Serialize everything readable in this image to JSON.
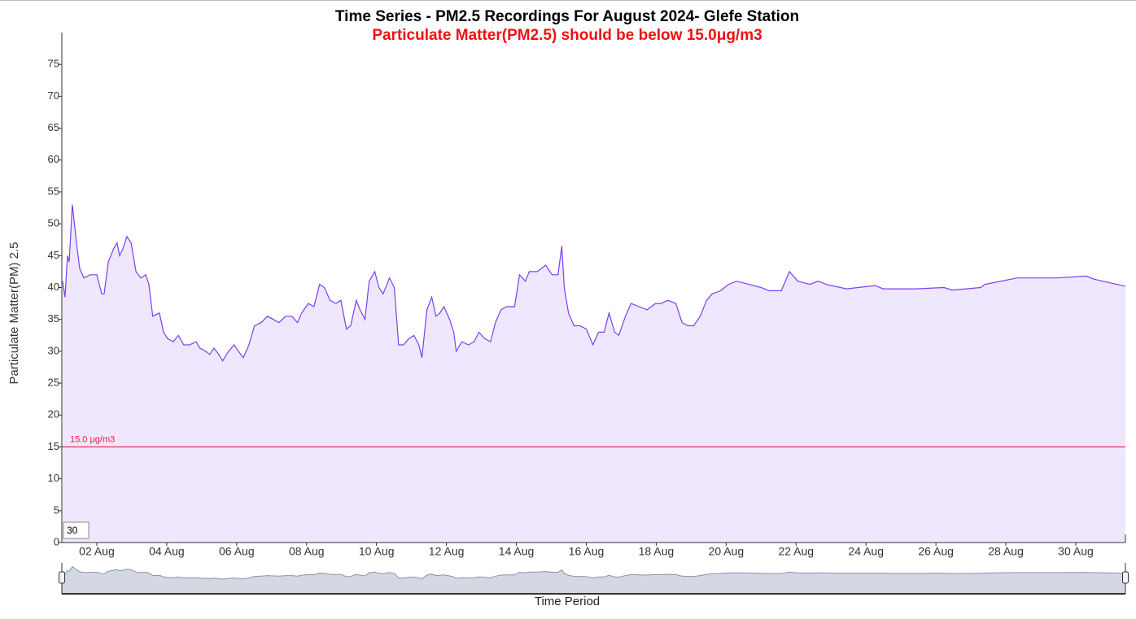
{
  "chart_data": {
    "type": "area",
    "title": "Time Series - PM2.5 Recordings For August 2024- Glefe Station",
    "subtitle": "Particulate Matter(PM2.5) should be below 15.0μg/m3",
    "y_label": "Particulate Matter(PM) 2.5",
    "x_label": "Time Period",
    "zoom_box": 30,
    "threshold": {
      "value": 15,
      "label": "15.0 μg/m3",
      "color": "#e8203a"
    },
    "ylim": [
      0,
      80
    ],
    "yticks": [
      0,
      5,
      10,
      15,
      20,
      25,
      30,
      35,
      40,
      45,
      50,
      55,
      60,
      65,
      70,
      75
    ],
    "xlim": [
      1,
      31.42
    ],
    "xticks": [
      {
        "value": 2,
        "label": "02 Aug"
      },
      {
        "value": 4,
        "label": "04 Aug"
      },
      {
        "value": 6,
        "label": "06 Aug"
      },
      {
        "value": 8,
        "label": "08 Aug"
      },
      {
        "value": 10,
        "label": "10 Aug"
      },
      {
        "value": 12,
        "label": "12 Aug"
      },
      {
        "value": 14,
        "label": "14 Aug"
      },
      {
        "value": 16,
        "label": "16 Aug"
      },
      {
        "value": 18,
        "label": "18 Aug"
      },
      {
        "value": 20,
        "label": "20 Aug"
      },
      {
        "value": 22,
        "label": "22 Aug"
      },
      {
        "value": 24,
        "label": "24 Aug"
      },
      {
        "value": 26,
        "label": "26 Aug"
      },
      {
        "value": 28,
        "label": "28 Aug"
      },
      {
        "value": 30,
        "label": "30 Aug"
      }
    ],
    "x": [
      1.02,
      1.09,
      1.16,
      1.21,
      1.3,
      1.42,
      1.51,
      1.63,
      1.81,
      2.0,
      2.14,
      2.21,
      2.33,
      2.47,
      2.58,
      2.65,
      2.74,
      2.86,
      2.98,
      3.12,
      3.26,
      3.4,
      3.49,
      3.6,
      3.79,
      3.91,
      4.02,
      4.19,
      4.33,
      4.49,
      4.65,
      4.84,
      4.95,
      5.12,
      5.23,
      5.35,
      5.49,
      5.6,
      5.77,
      5.93,
      6.05,
      6.19,
      6.35,
      6.51,
      6.7,
      6.88,
      7.05,
      7.21,
      7.4,
      7.58,
      7.74,
      7.86,
      8.05,
      8.21,
      8.37,
      8.51,
      8.67,
      8.84,
      8.98,
      9.14,
      9.26,
      9.42,
      9.53,
      9.67,
      9.79,
      9.95,
      10.07,
      10.19,
      10.37,
      10.51,
      10.63,
      10.77,
      10.93,
      11.07,
      11.21,
      11.3,
      11.44,
      11.58,
      11.7,
      11.81,
      11.93,
      12.09,
      12.21,
      12.28,
      12.44,
      12.63,
      12.79,
      12.93,
      13.09,
      13.26,
      13.4,
      13.56,
      13.72,
      13.95,
      14.09,
      14.26,
      14.37,
      14.6,
      14.84,
      15.02,
      15.19,
      15.3,
      15.37,
      15.49,
      15.65,
      15.81,
      16.0,
      16.19,
      16.35,
      16.51,
      16.65,
      16.81,
      16.93,
      17.12,
      17.28,
      17.51,
      17.74,
      17.98,
      18.14,
      18.33,
      18.56,
      18.74,
      18.91,
      19.07,
      19.26,
      19.44,
      19.6,
      19.84,
      20.07,
      20.3,
      20.65,
      21.0,
      21.23,
      21.58,
      21.81,
      22.05,
      22.4,
      22.63,
      22.86,
      23.44,
      24.26,
      24.49,
      25.42,
      26.23,
      26.47,
      27.28,
      27.4,
      28.33,
      29.49,
      30.3,
      30.53,
      31.42
    ],
    "series": [
      {
        "name": "PM2.5",
        "color": "#7b3ff2",
        "fill": "#efe7fd",
        "values": [
          41,
          38.5,
          45,
          44,
          53,
          47,
          43,
          41.5,
          42,
          42,
          39,
          39,
          44,
          46,
          47,
          45,
          46,
          48,
          47,
          42.5,
          41.5,
          42,
          40.5,
          35.5,
          36,
          33,
          32,
          31.5,
          32.5,
          31,
          31,
          31.5,
          30.5,
          30,
          29.5,
          30.5,
          29.5,
          28.5,
          30,
          31,
          30,
          29,
          31,
          34,
          34.5,
          35.5,
          35,
          34.5,
          35.5,
          35.5,
          34.5,
          36,
          37.5,
          37,
          40.5,
          40,
          38,
          37.5,
          38,
          33.5,
          34,
          38,
          36.5,
          35,
          41,
          42.5,
          40,
          39,
          41.5,
          40,
          31,
          31,
          32,
          32.5,
          31,
          29,
          36.5,
          38.5,
          35.5,
          36,
          37,
          35,
          33,
          30,
          31.5,
          31,
          31.5,
          33,
          32,
          31.5,
          34.5,
          36.5,
          37,
          37,
          42,
          41,
          42.5,
          42.5,
          43.5,
          42,
          42,
          46.5,
          40,
          36,
          34,
          34,
          33.5,
          31,
          33,
          33,
          36,
          33,
          32.5,
          35.5,
          37.5,
          37,
          36.5,
          37.5,
          37.5,
          38,
          37.5,
          34.5,
          34,
          34,
          35.5,
          38,
          39,
          39.5,
          40.5,
          41,
          40.5,
          40,
          39.5,
          39.5,
          42.5,
          41,
          40.5,
          41,
          40.5,
          39.8,
          40.3,
          39.8,
          39.8,
          40,
          39.6,
          40,
          40.5,
          41.5,
          41.5,
          41.8,
          41.3,
          40.2
        ]
      }
    ]
  }
}
